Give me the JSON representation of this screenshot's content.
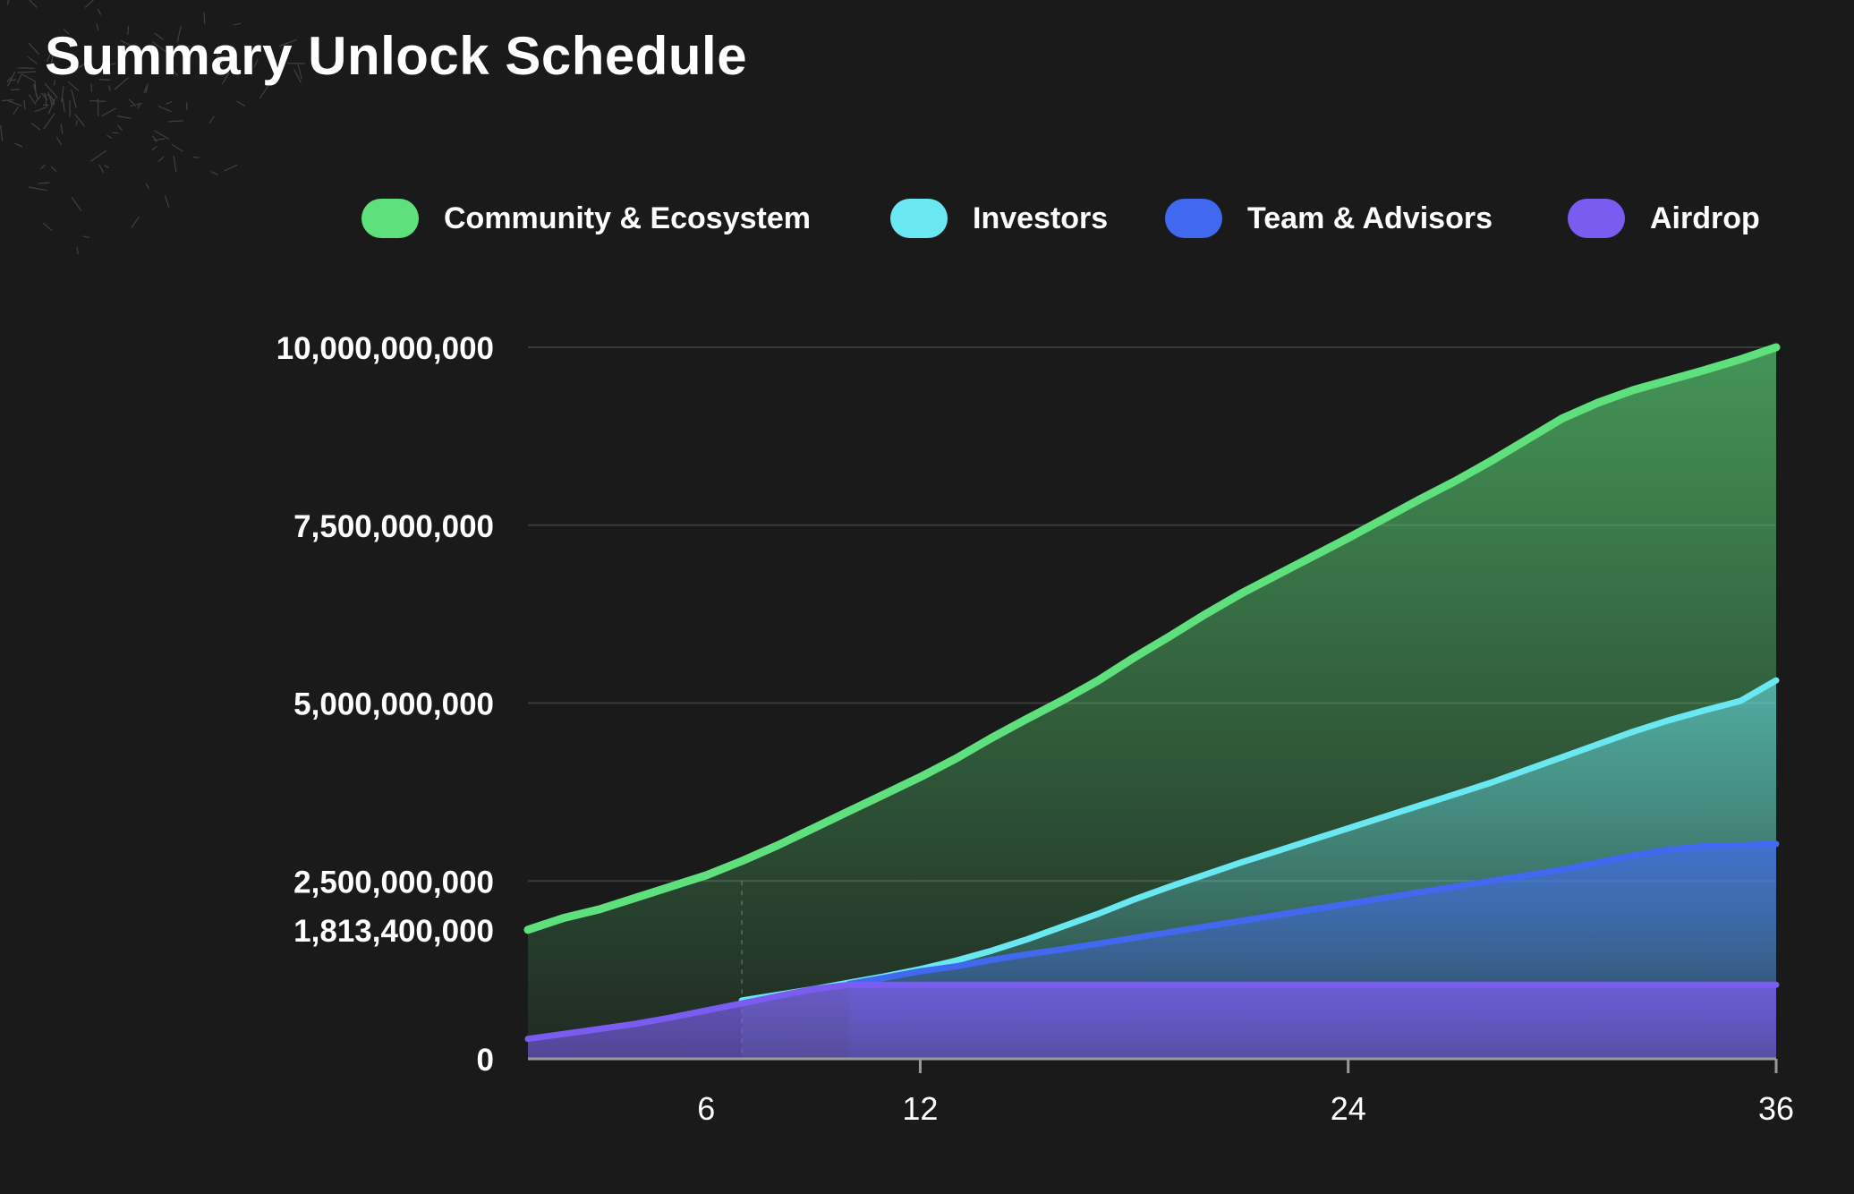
{
  "title": "Summary Unlock Schedule",
  "chart_data": {
    "type": "area",
    "title": "Summary Unlock Schedule",
    "xlabel": "",
    "ylabel": "",
    "xlim": [
      1,
      36
    ],
    "ylim": [
      0,
      10000000000
    ],
    "grid": true,
    "legend_position": "top",
    "y_ticks": [
      0,
      1813400000,
      2500000000,
      5000000000,
      7500000000,
      10000000000
    ],
    "y_tick_labels": [
      "0",
      "1,813,400,000",
      "2,500,000,000",
      "5,000,000,000",
      "7,500,000,000",
      "10,000,000,000"
    ],
    "x_ticks": [
      6,
      12,
      24,
      36
    ],
    "x_tick_labels": [
      "6",
      "12",
      "24",
      "36"
    ],
    "annotations": [
      {
        "type": "vertical-dashed-line",
        "x": 7
      }
    ],
    "series": [
      {
        "name": "Community & Ecosystem",
        "color": "#5ee07d",
        "points": [
          [
            1,
            1813400000
          ],
          [
            2,
            1980000000
          ],
          [
            3,
            2100000000
          ],
          [
            4,
            2260000000
          ],
          [
            5,
            2420000000
          ],
          [
            6,
            2580000000
          ],
          [
            7,
            2780000000
          ],
          [
            8,
            3000000000
          ],
          [
            9,
            3240000000
          ],
          [
            10,
            3480000000
          ],
          [
            11,
            3720000000
          ],
          [
            12,
            3960000000
          ],
          [
            13,
            4220000000
          ],
          [
            14,
            4510000000
          ],
          [
            15,
            4780000000
          ],
          [
            16,
            5040000000
          ],
          [
            17,
            5320000000
          ],
          [
            18,
            5640000000
          ],
          [
            19,
            5940000000
          ],
          [
            20,
            6250000000
          ],
          [
            21,
            6540000000
          ],
          [
            22,
            6800000000
          ],
          [
            23,
            7060000000
          ],
          [
            24,
            7320000000
          ],
          [
            25,
            7590000000
          ],
          [
            26,
            7860000000
          ],
          [
            27,
            8120000000
          ],
          [
            28,
            8400000000
          ],
          [
            29,
            8700000000
          ],
          [
            30,
            9000000000
          ],
          [
            31,
            9220000000
          ],
          [
            32,
            9400000000
          ],
          [
            33,
            9540000000
          ],
          [
            34,
            9680000000
          ],
          [
            35,
            9830000000
          ],
          [
            36,
            10000000000
          ]
        ]
      },
      {
        "name": "Investors",
        "color": "#6ae8f2",
        "points": [
          [
            7,
            820000000
          ],
          [
            8,
            900000000
          ],
          [
            9,
            980000000
          ],
          [
            10,
            1070000000
          ],
          [
            11,
            1160000000
          ],
          [
            12,
            1260000000
          ],
          [
            13,
            1380000000
          ],
          [
            14,
            1520000000
          ],
          [
            15,
            1680000000
          ],
          [
            16,
            1860000000
          ],
          [
            17,
            2040000000
          ],
          [
            18,
            2240000000
          ],
          [
            19,
            2420000000
          ],
          [
            20,
            2590000000
          ],
          [
            21,
            2760000000
          ],
          [
            22,
            2920000000
          ],
          [
            23,
            3080000000
          ],
          [
            24,
            3240000000
          ],
          [
            25,
            3400000000
          ],
          [
            26,
            3560000000
          ],
          [
            27,
            3720000000
          ],
          [
            28,
            3880000000
          ],
          [
            29,
            4060000000
          ],
          [
            30,
            4240000000
          ],
          [
            31,
            4420000000
          ],
          [
            32,
            4600000000
          ],
          [
            33,
            4760000000
          ],
          [
            34,
            4900000000
          ],
          [
            35,
            5030000000
          ],
          [
            36,
            5320000000
          ]
        ]
      },
      {
        "name": "Team & Advisors",
        "color": "#4169f0",
        "points": [
          [
            10,
            1050000000
          ],
          [
            11,
            1140000000
          ],
          [
            12,
            1230000000
          ],
          [
            13,
            1300000000
          ],
          [
            14,
            1390000000
          ],
          [
            15,
            1470000000
          ],
          [
            16,
            1540000000
          ],
          [
            17,
            1620000000
          ],
          [
            18,
            1700000000
          ],
          [
            19,
            1780000000
          ],
          [
            20,
            1860000000
          ],
          [
            21,
            1940000000
          ],
          [
            22,
            2020000000
          ],
          [
            23,
            2100000000
          ],
          [
            24,
            2180000000
          ],
          [
            25,
            2260000000
          ],
          [
            26,
            2340000000
          ],
          [
            27,
            2420000000
          ],
          [
            28,
            2500000000
          ],
          [
            29,
            2580000000
          ],
          [
            30,
            2660000000
          ],
          [
            31,
            2760000000
          ],
          [
            32,
            2860000000
          ],
          [
            33,
            2940000000
          ],
          [
            34,
            2990000000
          ],
          [
            35,
            3000000000
          ],
          [
            36,
            3020000000
          ]
        ]
      },
      {
        "name": "Airdrop",
        "color": "#7b5cf0",
        "points": [
          [
            1,
            280000000
          ],
          [
            2,
            350000000
          ],
          [
            3,
            420000000
          ],
          [
            4,
            490000000
          ],
          [
            5,
            580000000
          ],
          [
            6,
            680000000
          ],
          [
            7,
            780000000
          ],
          [
            8,
            880000000
          ],
          [
            9,
            980000000
          ],
          [
            10,
            1040000000
          ],
          [
            11,
            1040000000
          ],
          [
            12,
            1040000000
          ],
          [
            18,
            1040000000
          ],
          [
            24,
            1040000000
          ],
          [
            30,
            1040000000
          ],
          [
            36,
            1040000000
          ]
        ]
      }
    ]
  }
}
